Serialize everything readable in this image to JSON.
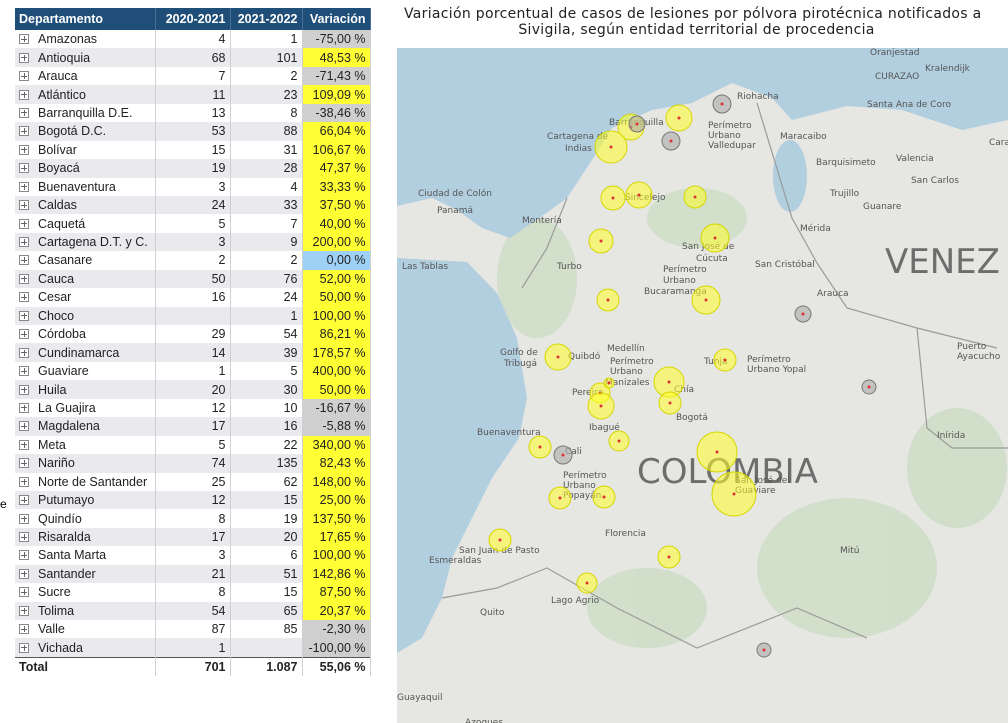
{
  "table": {
    "columns": [
      "Departamento",
      "2020-2021",
      "2021-2022",
      "Variación"
    ],
    "rows": [
      [
        "Amazonas",
        "4",
        "1",
        "-75,00 %"
      ],
      [
        "Antioquia",
        "68",
        "101",
        "48,53 %"
      ],
      [
        "Arauca",
        "7",
        "2",
        "-71,43 %"
      ],
      [
        "Atlántico",
        "11",
        "23",
        "109,09 %"
      ],
      [
        "Barranquilla D.E.",
        "13",
        "8",
        "-38,46 %"
      ],
      [
        "Bogotá D.C.",
        "53",
        "88",
        "66,04 %"
      ],
      [
        "Bolívar",
        "15",
        "31",
        "106,67 %"
      ],
      [
        "Boyacá",
        "19",
        "28",
        "47,37 %"
      ],
      [
        "Buenaventura",
        "3",
        "4",
        "33,33 %"
      ],
      [
        "Caldas",
        "24",
        "33",
        "37,50 %"
      ],
      [
        "Caquetá",
        "5",
        "7",
        "40,00 %"
      ],
      [
        "Cartagena D.T. y C.",
        "3",
        "9",
        "200,00 %"
      ],
      [
        "Casanare",
        "2",
        "2",
        "0,00 %"
      ],
      [
        "Cauca",
        "50",
        "76",
        "52,00 %"
      ],
      [
        "Cesar",
        "16",
        "24",
        "50,00 %"
      ],
      [
        "Choco",
        null,
        "1",
        "100,00 %"
      ],
      [
        "Córdoba",
        "29",
        "54",
        "86,21 %"
      ],
      [
        "Cundinamarca",
        "14",
        "39",
        "178,57 %"
      ],
      [
        "Guaviare",
        "1",
        "5",
        "400,00 %"
      ],
      [
        "Huila",
        "20",
        "30",
        "50,00 %"
      ],
      [
        "La Guajira",
        "12",
        "10",
        "-16,67 %"
      ],
      [
        "Magdalena",
        "17",
        "16",
        "-5,88 %"
      ],
      [
        "Meta",
        "5",
        "22",
        "340,00 %"
      ],
      [
        "Nariño",
        "74",
        "135",
        "82,43 %"
      ],
      [
        "Norte de Santander",
        "25",
        "62",
        "148,00 %"
      ],
      [
        "Putumayo",
        "12",
        "15",
        "25,00 %"
      ],
      [
        "Quindío",
        "8",
        "19",
        "137,50 %"
      ],
      [
        "Risaralda",
        "17",
        "20",
        "17,65 %"
      ],
      [
        "Santa Marta",
        "3",
        "6",
        "100,00 %"
      ],
      [
        "Santander",
        "21",
        "51",
        "142,86 %"
      ],
      [
        "Sucre",
        "8",
        "15",
        "87,50 %"
      ],
      [
        "Tolima",
        "54",
        "65",
        "20,37 %"
      ],
      [
        "Valle",
        "87",
        "85",
        "-2,30 %"
      ],
      [
        "Vichada",
        "1",
        null,
        "-100,00 %"
      ]
    ],
    "total": [
      "Total",
      "701",
      "1.087",
      "55,06 %"
    ]
  },
  "edge_fragment": "e",
  "map": {
    "title": [
      "Variación porcentual de casos de lesiones por pólvora pirotécnica notificados a",
      "Sivigila, según entidad territorial de procedencia"
    ],
    "labels": [
      "Oranjestad",
      "CURAZAO",
      "Kralendijk",
      "Riohacha",
      "Santa Ana de Coro",
      "Barranquilla",
      "Cartagena de",
      "Indias",
      "Perímetro",
      "Urbano",
      "Valledupar",
      "Maracaibo",
      "Caracas",
      "Barquisimeto",
      "Valencia",
      "San Carlos",
      "Trujillo",
      "Guanare",
      "Mérida",
      "VENEZ",
      "Ciudad de Colón",
      "Panamá",
      "Montería",
      "Sincelejo",
      "Las Tablas",
      "Turbo",
      "San José de",
      "Cúcuta",
      "San Cristóbal",
      "Perímetro",
      "Urbano",
      "Bucaramanga",
      "Arauca",
      "Golfo de",
      "Tribugá",
      "Quibdó",
      "Medellín",
      "Perímetro",
      "Urbano",
      "Manizales",
      "Tunja",
      "Perímetro",
      "Urbano Yopal",
      "Puerto",
      "Ayacucho",
      "Pereira",
      "Chía",
      "Bogotá",
      "Ibagué",
      "Buenaventura",
      "COLOMBIA",
      "Inírida",
      "Cali",
      "Perímetro",
      "Urbano",
      "Popayán",
      "San José del",
      "Guaviare",
      "Florencia",
      "San Juan de Pasto",
      "Esmeraldas",
      "Mitú",
      "Quito",
      "Lago Agrio",
      "Guayaquil",
      "Azogues"
    ]
  }
}
